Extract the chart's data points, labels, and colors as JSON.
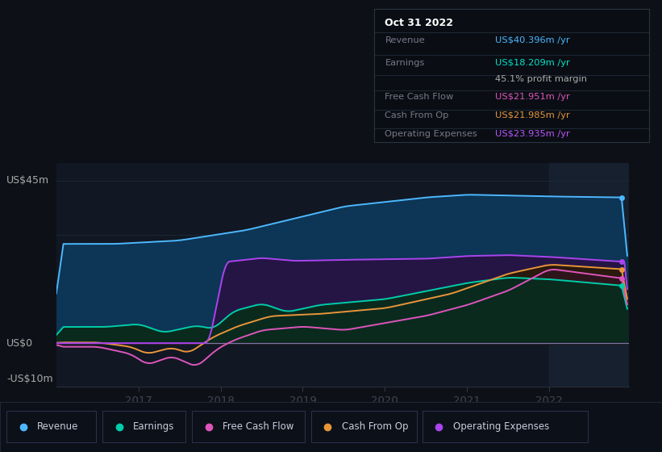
{
  "bg_color": "#0d1117",
  "plot_bg_color": "#111823",
  "title": "Oct 31 2022",
  "y_label_top": "US$45m",
  "y_label_mid": "US$0",
  "y_label_bot": "-US$10m",
  "x_ticks": [
    2017,
    2018,
    2019,
    2020,
    2021,
    2022
  ],
  "ylim": [
    -12,
    50
  ],
  "tooltip": {
    "title": "Oct 31 2022",
    "rows": [
      {
        "label": "Revenue",
        "value": "US$40.396m /yr",
        "value_color": "#4db8ff",
        "label_color": "#888899"
      },
      {
        "label": "Earnings",
        "value": "US$18.209m /yr",
        "value_color": "#00e5cc",
        "label_color": "#888899"
      },
      {
        "label": "",
        "value": "45.1% profit margin",
        "value_color": "#aaaaaa",
        "label_color": "#888899"
      },
      {
        "label": "Free Cash Flow",
        "value": "US$21.951m /yr",
        "value_color": "#dd55bb",
        "label_color": "#888899"
      },
      {
        "label": "Cash From Op",
        "value": "US$21.985m /yr",
        "value_color": "#e8953a",
        "label_color": "#888899"
      },
      {
        "label": "Operating Expenses",
        "value": "US$23.935m /yr",
        "value_color": "#bb55ff",
        "label_color": "#888899"
      }
    ]
  },
  "legend": [
    {
      "label": "Revenue",
      "color": "#4db8ff"
    },
    {
      "label": "Earnings",
      "color": "#00ccaa"
    },
    {
      "label": "Free Cash Flow",
      "color": "#dd55bb"
    },
    {
      "label": "Cash From Op",
      "color": "#e8953a"
    },
    {
      "label": "Operating Expenses",
      "color": "#aa44ee"
    }
  ],
  "revenue_color": "#4db8ff",
  "earnings_color": "#00ccaa",
  "fcf_color": "#dd55bb",
  "cashop_color": "#e8953a",
  "opex_color": "#aa44ee"
}
